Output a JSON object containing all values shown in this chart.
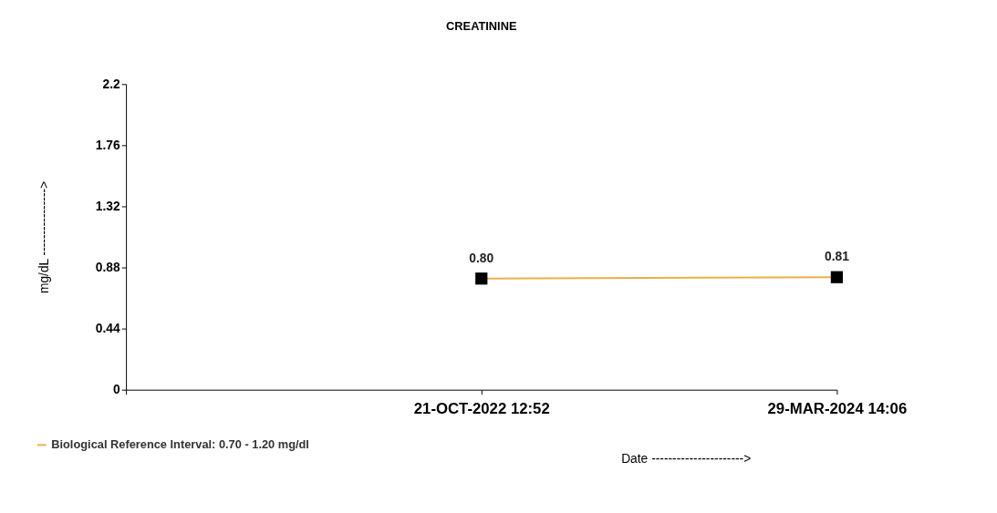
{
  "chart_data": {
    "type": "line",
    "title": "CREATININE",
    "xlabel": "Date ---------------------->",
    "ylabel": "mg/dL ---------------->",
    "categories": [
      null,
      "21-OCT-2022 12:52",
      "29-MAR-2024 14:06"
    ],
    "series": [
      {
        "name": "Biological Reference Interval: 0.70 - 1.20 mg/dl",
        "color": "#e8b04a",
        "values": [
          null,
          0.8,
          0.81
        ],
        "value_labels": [
          null,
          "0.80",
          "0.81"
        ]
      }
    ],
    "ylim": [
      0,
      2.2
    ],
    "yticks": [
      0,
      0.44,
      0.88,
      1.32,
      1.76,
      2.2
    ],
    "marker": "square",
    "line_style": "solid",
    "grid": false,
    "legend": "bottom left"
  }
}
